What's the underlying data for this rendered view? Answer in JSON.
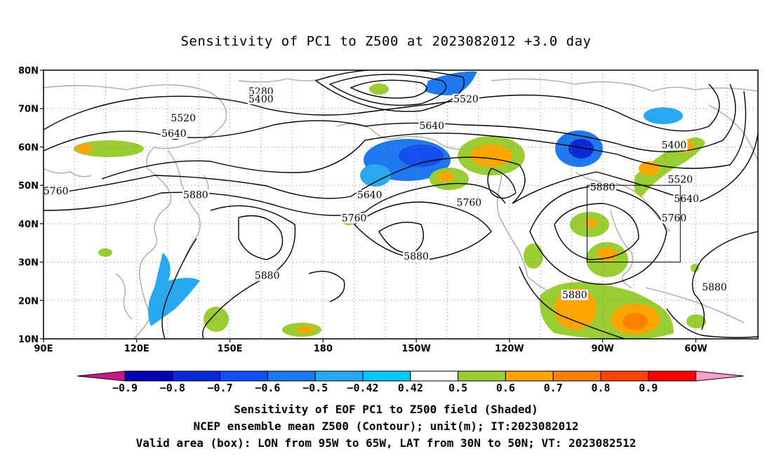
{
  "title": "Sensitivity of PC1 to Z500 at 2023082012 +3.0 day",
  "captions": [
    "Sensitivity of EOF PC1 to Z500 field (Shaded)",
    "NCEP ensemble mean Z500 (Contour); unit(m); IT:2023082012",
    "Valid area (box): LON from 95W to 65W, LAT from 30N to 50N; VT: 2023082512"
  ],
  "map": {
    "lon_range": [
      90,
      320
    ],
    "lat_range": [
      10,
      80
    ],
    "lat_ticks": [
      "80N",
      "70N",
      "60N",
      "50N",
      "40N",
      "30N",
      "20N",
      "10N"
    ],
    "lon_ticks": [
      "90E",
      "120E",
      "150E",
      "180",
      "150W",
      "120W",
      "90W",
      "60W"
    ],
    "contour_labels": [
      {
        "text": "5280",
        "lon": 160,
        "lat": 74
      },
      {
        "text": "5400",
        "lon": 160,
        "lat": 72
      },
      {
        "text": "5520",
        "lon": 226,
        "lat": 72
      },
      {
        "text": "5520",
        "lon": 135,
        "lat": 67
      },
      {
        "text": "5640",
        "lon": 215,
        "lat": 65
      },
      {
        "text": "5640",
        "lon": 132,
        "lat": 63
      },
      {
        "text": "5400",
        "lon": 293,
        "lat": 60
      },
      {
        "text": "5520",
        "lon": 295,
        "lat": 51
      },
      {
        "text": "5640",
        "lon": 297,
        "lat": 46
      },
      {
        "text": "5760",
        "lon": 293,
        "lat": 41
      },
      {
        "text": "5880",
        "lon": 270,
        "lat": 49
      },
      {
        "text": "5760",
        "lon": 227,
        "lat": 45
      },
      {
        "text": "5640",
        "lon": 195,
        "lat": 47
      },
      {
        "text": "5760",
        "lon": 190,
        "lat": 41
      },
      {
        "text": "5880",
        "lon": 139,
        "lat": 47
      },
      {
        "text": "5880",
        "lon": 162,
        "lat": 26
      },
      {
        "text": "5880",
        "lon": 210,
        "lat": 31
      },
      {
        "text": "5760",
        "lon": 94,
        "lat": 48
      },
      {
        "text": "5880",
        "lon": 261,
        "lat": 21
      },
      {
        "text": "5880",
        "lon": 306,
        "lat": 23
      }
    ],
    "valid_box": {
      "lon": [
        265,
        295
      ],
      "lat": [
        30,
        50
      ]
    }
  },
  "colorbar": {
    "tick_labels": [
      "-0.9",
      "-0.8",
      "-0.7",
      "-0.6",
      "-0.5",
      "-0.42",
      "0.42",
      "0.5",
      "0.6",
      "0.7",
      "0.8",
      "0.9"
    ],
    "colors": [
      "#0000b4",
      "#0a2ad8",
      "#1450f0",
      "#1e78f0",
      "#28a8f0",
      "#00c8ff",
      "#ffffff",
      "#9acd32",
      "#ffa500",
      "#ff7f00",
      "#ff4500",
      "#ff0000"
    ],
    "low_end_color": "#c8198c",
    "high_end_color": "#ffa0c8"
  }
}
